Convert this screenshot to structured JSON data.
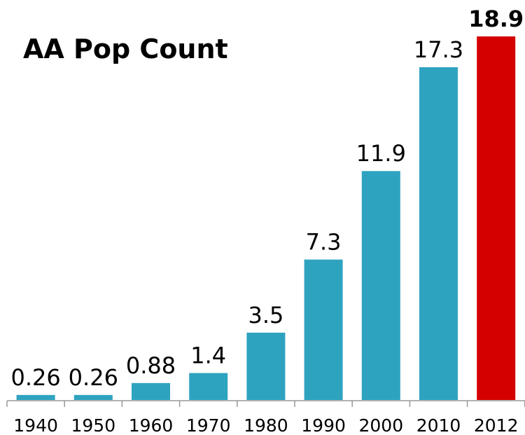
{
  "chart_data": {
    "type": "bar",
    "title": "AA Pop Count",
    "categories": [
      "1940",
      "1950",
      "1960",
      "1970",
      "1980",
      "1990",
      "2000",
      "2010",
      "2012"
    ],
    "values": [
      0.26,
      0.26,
      0.88,
      1.4,
      3.5,
      7.3,
      11.9,
      17.3,
      18.9
    ],
    "color": "#2ea3c0",
    "highlight": {
      "index": 8,
      "color": "#d40000"
    }
  }
}
